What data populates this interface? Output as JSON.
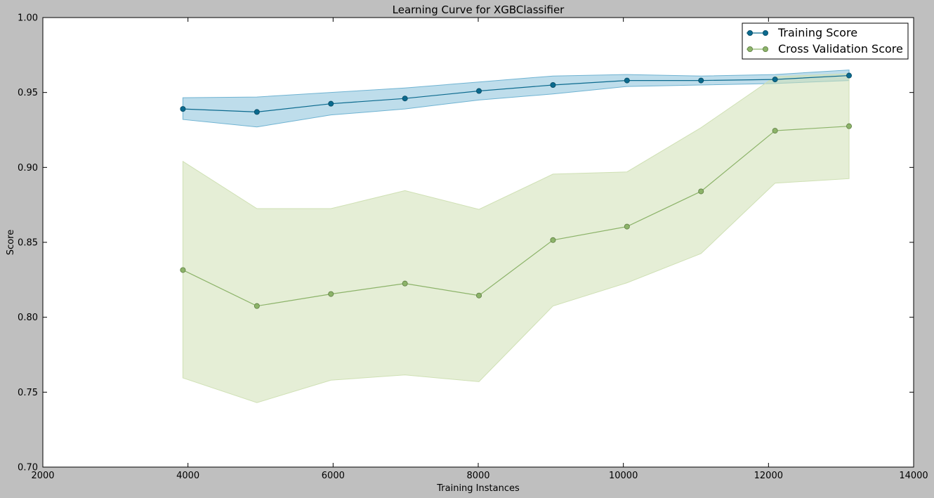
{
  "chart_data": {
    "type": "line",
    "title": "Learning Curve for XGBClassifier",
    "xlabel": "Training Instances",
    "ylabel": "Score",
    "xlim": [
      2000,
      14000
    ],
    "ylim": [
      0.7,
      1.0
    ],
    "xticks": [
      2000,
      4000,
      6000,
      8000,
      10000,
      12000,
      14000
    ],
    "xtick_labels": [
      "2000",
      "4000",
      "6000",
      "8000",
      "10000",
      "12000",
      "14000"
    ],
    "yticks": [
      0.7,
      0.75,
      0.8,
      0.85,
      0.9,
      0.95,
      1.0
    ],
    "ytick_labels": [
      "0.70",
      "0.75",
      "0.80",
      "0.85",
      "0.90",
      "0.95",
      "1.00"
    ],
    "grid": false,
    "legend_position": "top-right",
    "x": [
      3930,
      4950,
      5970,
      6990,
      8010,
      9030,
      10050,
      11070,
      12090,
      13110
    ],
    "series": [
      {
        "name": "Training Score",
        "color": "#0b6a8e",
        "band_color": "#6fb3d2",
        "values": [
          0.939,
          0.937,
          0.9425,
          0.946,
          0.951,
          0.955,
          0.958,
          0.958,
          0.9587,
          0.9613
        ],
        "upper": [
          0.9465,
          0.947,
          0.95,
          0.953,
          0.957,
          0.961,
          0.962,
          0.961,
          0.962,
          0.965
        ],
        "lower": [
          0.932,
          0.927,
          0.935,
          0.939,
          0.945,
          0.949,
          0.954,
          0.955,
          0.956,
          0.958
        ]
      },
      {
        "name": "Cross Validation Score",
        "color": "#8cb369",
        "band_color": "#cfe0b4",
        "values": [
          0.8315,
          0.8075,
          0.8155,
          0.8225,
          0.8145,
          0.8515,
          0.8605,
          0.884,
          0.9245,
          0.9275
        ],
        "upper": [
          0.904,
          0.8725,
          0.8725,
          0.8845,
          0.872,
          0.8955,
          0.897,
          0.9265,
          0.9605,
          0.9625
        ],
        "lower": [
          0.7595,
          0.743,
          0.758,
          0.7615,
          0.757,
          0.8075,
          0.823,
          0.8425,
          0.8895,
          0.8925
        ]
      }
    ]
  }
}
